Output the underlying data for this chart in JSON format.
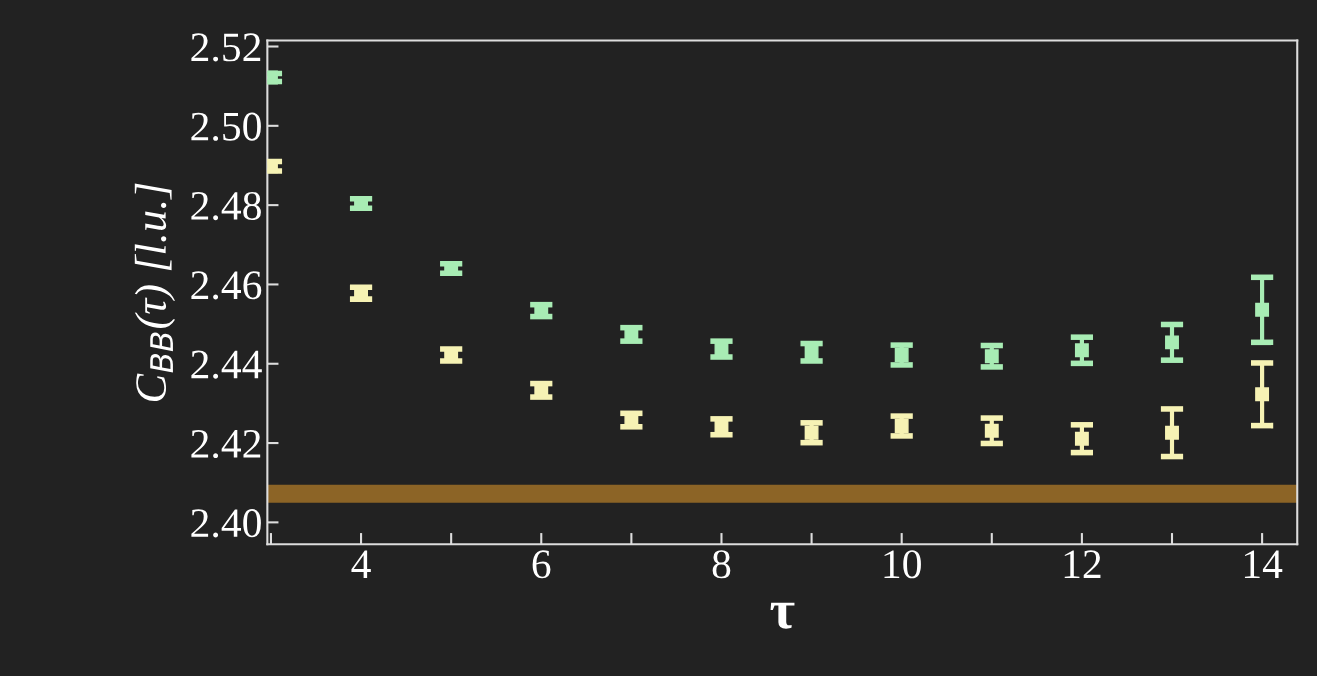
{
  "chart_data": {
    "type": "scatter",
    "xlabel": "τ",
    "ylabel": "C$_{BB}$(τ) [l.u.]",
    "x": [
      3,
      4,
      5,
      6,
      7,
      8,
      9,
      10,
      11,
      12,
      13,
      14
    ],
    "series": [
      {
        "color": "#a8ecb4",
        "values": [
          2.5122,
          2.4804,
          2.464,
          2.4534,
          2.4474,
          2.4437,
          2.4429,
          2.4422,
          2.4419,
          2.4434,
          2.4454,
          2.4536
        ],
        "errors": [
          0.001,
          0.0012,
          0.0012,
          0.0015,
          0.0017,
          0.002,
          0.0022,
          0.0025,
          0.0027,
          0.0033,
          0.0045,
          0.0082
        ]
      },
      {
        "color": "#f6f2b4",
        "values": [
          2.4898,
          2.4578,
          2.4422,
          2.4333,
          2.4258,
          2.4241,
          2.4226,
          2.4243,
          2.4231,
          2.4211,
          2.4226,
          2.4323
        ],
        "errors": [
          0.0012,
          0.0015,
          0.0015,
          0.0017,
          0.0017,
          0.002,
          0.0025,
          0.0025,
          0.0032,
          0.0035,
          0.006,
          0.0079
        ]
      }
    ],
    "ref_lines": [
      {
        "axis": "y",
        "value": 2.4072,
        "color": "#8c6426"
      }
    ],
    "xlim": [
      2.96,
      14.39
    ],
    "ylim": [
      2.3945,
      2.5215
    ],
    "xticks": [
      {
        "value": 3,
        "label": null
      },
      4,
      {
        "value": 5,
        "label": null
      },
      6,
      {
        "value": 7,
        "label": null
      },
      8,
      {
        "value": 9,
        "label": null
      },
      10,
      {
        "value": 11,
        "label": null
      },
      12,
      {
        "value": 13,
        "label": null
      },
      14
    ],
    "yticks": [
      {
        "value": 2.4,
        "label": "2.40"
      },
      2.42,
      2.44,
      2.46,
      2.48,
      {
        "value": 2.5,
        "label": "2.50"
      },
      2.52
    ],
    "marker": "square",
    "grid": false,
    "legend": false
  }
}
